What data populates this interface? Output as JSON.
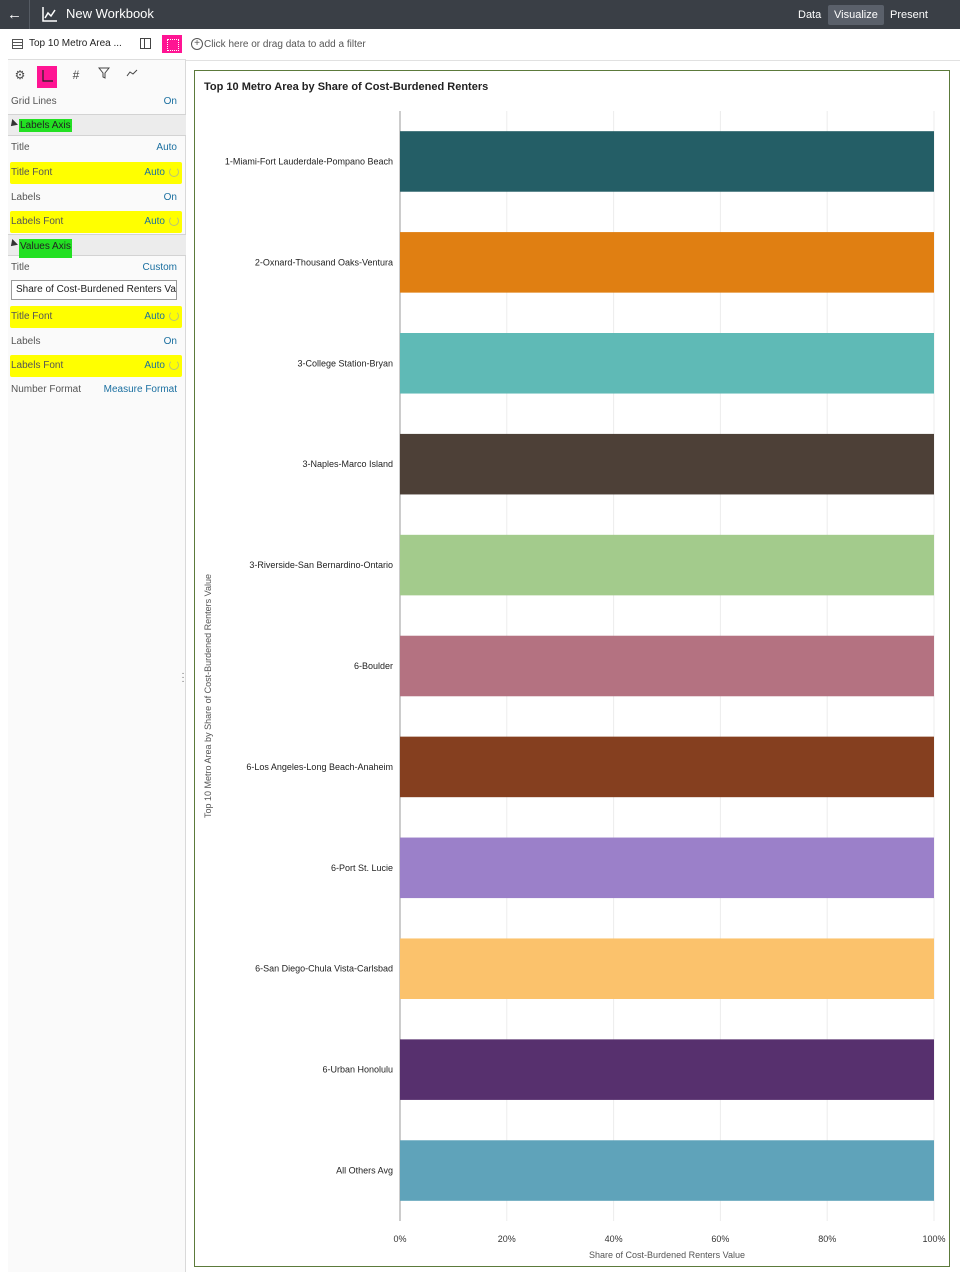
{
  "header": {
    "title": "New Workbook",
    "tabs": [
      {
        "label": "Data",
        "active": false
      },
      {
        "label": "Visualize",
        "active": true
      },
      {
        "label": "Present",
        "active": false
      }
    ]
  },
  "viz_selector": {
    "name": "Top 10 Metro Area ..."
  },
  "filter_bar": {
    "placeholder": "Click here or drag data to add a filter"
  },
  "properties": {
    "grid_lines": {
      "label": "Grid Lines",
      "value": "On"
    },
    "labels_axis": {
      "section": "Labels Axis",
      "title": {
        "label": "Title",
        "value": "Auto"
      },
      "title_font": {
        "label": "Title Font",
        "value": "Auto"
      },
      "labels": {
        "label": "Labels",
        "value": "On"
      },
      "labels_font": {
        "label": "Labels Font",
        "value": "Auto"
      }
    },
    "values_axis": {
      "section": "Values Axis",
      "title": {
        "label": "Title",
        "value": "Custom"
      },
      "title_text": "Share of Cost-Burdened Renters Value",
      "title_font": {
        "label": "Title Font",
        "value": "Auto"
      },
      "labels": {
        "label": "Labels",
        "value": "On"
      },
      "labels_font": {
        "label": "Labels Font",
        "value": "Auto"
      },
      "number_format": {
        "label": "Number Format",
        "value": "Measure Format"
      }
    },
    "highlight_colors": {
      "yellow": "#ffff00",
      "green": "#22e022",
      "magenta": "#ff1493"
    }
  },
  "chart_data": {
    "type": "bar",
    "orientation": "horizontal",
    "title": "Top 10 Metro Area by Share of Cost-Burdened Renters",
    "xlabel": "Share of Cost-Burdened Renters Value",
    "ylabel": "Top 10 Metro Area by Share of Cost-Burdened Renters Value",
    "xlim": [
      0,
      100
    ],
    "x_ticks": [
      "0%",
      "20%",
      "40%",
      "60%",
      "80%",
      "100%"
    ],
    "grid": true,
    "categories": [
      "1-Miami-Fort Lauderdale-Pompano Beach",
      "2-Oxnard-Thousand Oaks-Ventura",
      "3-College Station-Bryan",
      "3-Naples-Marco Island",
      "3-Riverside-San Bernardino-Ontario",
      "6-Boulder",
      "6-Los Angeles-Long Beach-Anaheim",
      "6-Port St. Lucie",
      "6-San Diego-Chula Vista-Carlsbad",
      "6-Urban Honolulu",
      "All Others Avg"
    ],
    "values": [
      100,
      100,
      100,
      100,
      100,
      100,
      100,
      100,
      100,
      100,
      100
    ],
    "colors": [
      "#245e66",
      "#e07f12",
      "#5fbab6",
      "#4d4037",
      "#a3cb8c",
      "#b47281",
      "#853f1f",
      "#9b80c9",
      "#fbc26c",
      "#57306e",
      "#5fa3ba"
    ]
  }
}
